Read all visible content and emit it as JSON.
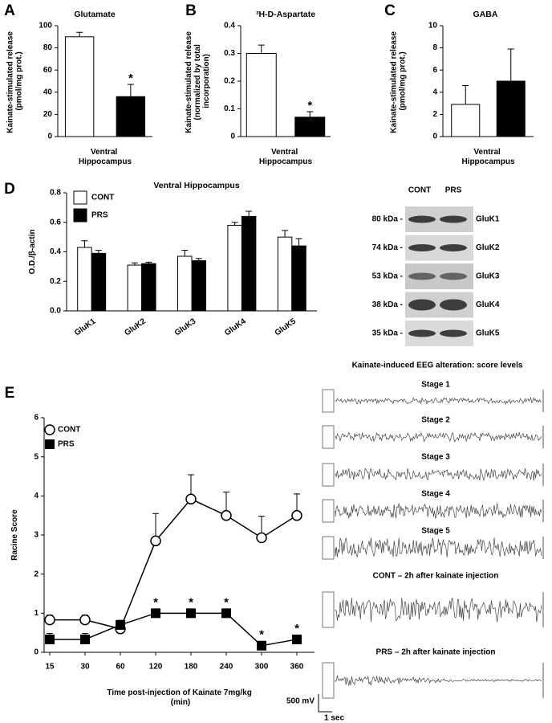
{
  "chart_data": [
    {
      "panel": "A",
      "type": "bar",
      "title": "Glutamate",
      "ylabel": "Kainate-stimulated release (pmol/mg prot.)",
      "categories": [
        "Ventral Hippocampus"
      ],
      "series": [
        {
          "color": "#ffffff",
          "values": [
            90
          ],
          "errors": [
            4
          ],
          "marks": [
            null
          ]
        },
        {
          "color": "#000000",
          "values": [
            36
          ],
          "errors": [
            11
          ],
          "marks": [
            "*"
          ]
        }
      ],
      "ylim": [
        0,
        100
      ],
      "yticks": [
        0,
        20,
        40,
        60,
        80,
        100
      ]
    },
    {
      "panel": "B",
      "type": "bar",
      "title": "³H-D-Aspartate",
      "ylabel": "Kainate-stimulated release (normalized by total incorporation)",
      "categories": [
        "Ventral Hippocampus"
      ],
      "series": [
        {
          "color": "#ffffff",
          "values": [
            0.3
          ],
          "errors": [
            0.03
          ],
          "marks": [
            null
          ]
        },
        {
          "color": "#000000",
          "values": [
            0.07
          ],
          "errors": [
            0.02
          ],
          "marks": [
            "*"
          ]
        }
      ],
      "ylim": [
        0,
        0.4
      ],
      "yticks": [
        0,
        0.1,
        0.2,
        0.3,
        0.4
      ]
    },
    {
      "panel": "C",
      "type": "bar",
      "title": "GABA",
      "ylabel": "Kainate-stimulated release (pmol/mg prot.)",
      "categories": [
        "Ventral Hippocampus"
      ],
      "series": [
        {
          "color": "#ffffff",
          "values": [
            2.9
          ],
          "errors": [
            1.7
          ],
          "marks": [
            null
          ]
        },
        {
          "color": "#000000",
          "values": [
            5.0
          ],
          "errors": [
            2.9
          ],
          "marks": [
            null
          ]
        }
      ],
      "ylim": [
        0,
        10
      ],
      "yticks": [
        0,
        2,
        4,
        6,
        8,
        10
      ]
    },
    {
      "panel": "D",
      "type": "bar",
      "title": "Ventral Hippocampus",
      "ylabel": "O.D./β-actin",
      "categories": [
        "GluK1",
        "GluK2",
        "GluK3",
        "GluK4",
        "GluK5"
      ],
      "series": [
        {
          "name": "CONT",
          "color": "#ffffff",
          "values": [
            0.43,
            0.31,
            0.37,
            0.58,
            0.5
          ],
          "errors": [
            0.045,
            0.015,
            0.04,
            0.02,
            0.045
          ]
        },
        {
          "name": "PRS",
          "color": "#000000",
          "values": [
            0.39,
            0.32,
            0.34,
            0.64,
            0.44
          ],
          "errors": [
            0.02,
            0.01,
            0.015,
            0.035,
            0.05
          ]
        }
      ],
      "ylim": [
        0,
        0.8
      ],
      "yticks": [
        {
          "value": 0,
          "label": "0.0"
        },
        0.2,
        0.4,
        0.6,
        0.8
      ],
      "legend": "upper left"
    },
    {
      "panel": "E",
      "type": "line",
      "ylabel": "Racine Score",
      "xlabel": "Time post-injection of Kainate 7mg/kg (min)",
      "categories": [
        "15",
        "30",
        "60",
        "120",
        "180",
        "240",
        "300",
        "360"
      ],
      "series": [
        {
          "name": "CONT",
          "color": "#000000",
          "marker": "circle",
          "values": [
            0.83,
            0.83,
            0.6,
            2.85,
            3.92,
            3.5,
            2.93,
            3.5
          ],
          "errors": [
            0.12,
            0.12,
            0.05,
            0.7,
            0.62,
            0.6,
            0.55,
            0.55
          ]
        },
        {
          "name": "PRS",
          "color": "#000000",
          "marker": "square",
          "values": [
            0.33,
            0.33,
            0.7,
            1.0,
            1.0,
            1.0,
            0.17,
            0.33
          ],
          "errors": [
            0.15,
            0.15,
            0.12,
            0.08,
            0.06,
            0.06,
            0.06,
            0.06
          ],
          "marks": [
            null,
            null,
            null,
            "*",
            "*",
            "*",
            "*",
            "*"
          ]
        }
      ],
      "ylim": [
        0,
        6
      ],
      "yticks": [
        0,
        1,
        2,
        3,
        4,
        5,
        6
      ],
      "legend": "upper left"
    }
  ],
  "blot": {
    "columns": [
      "CONT",
      "PRS"
    ],
    "rows": [
      {
        "size": "80 kDa -",
        "band": "GluK1"
      },
      {
        "size": "74 kDa -",
        "band": "GluK2"
      },
      {
        "size": "53 kDa -",
        "band": "GluK3"
      },
      {
        "size": "38 kDa -",
        "band": "GluK4"
      },
      {
        "size": "35 kDa -",
        "band": "GluK5"
      }
    ]
  },
  "eeg": {
    "title": "Kainate-induced EEG alteration: score levels",
    "traces": [
      "Stage 1",
      "Stage 2",
      "Stage 3",
      "Stage 4",
      "Stage 5",
      "CONT – 2h after kainate injection",
      "PRS – 2h after kainate injection"
    ],
    "voltage": "500 mV",
    "time": "1 sec"
  }
}
